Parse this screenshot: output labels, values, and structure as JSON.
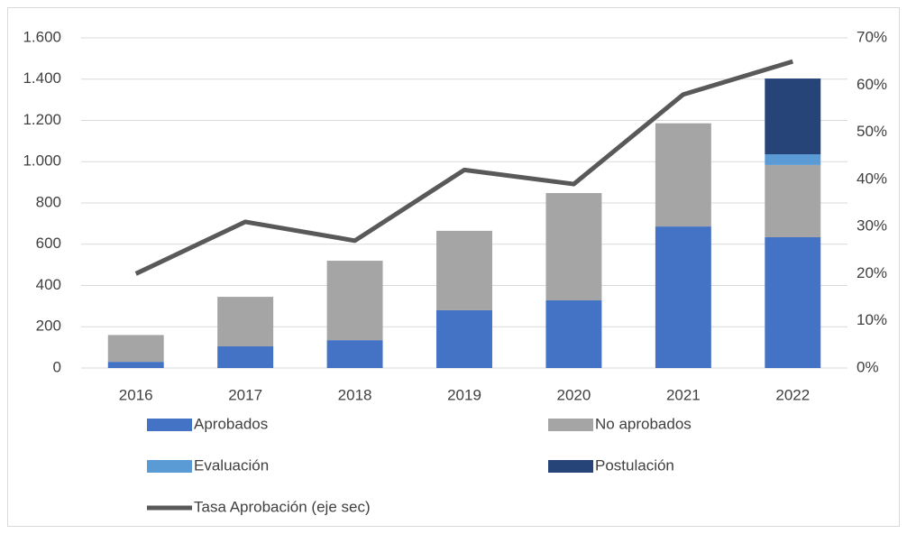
{
  "chart_data": {
    "type": "bar",
    "categories": [
      "2016",
      "2017",
      "2018",
      "2019",
      "2020",
      "2021",
      "2022"
    ],
    "series": [
      {
        "name": "Aprobados",
        "color": "#4472c4",
        "values": [
          30,
          105,
          135,
          280,
          328,
          686,
          634
        ]
      },
      {
        "name": "No aprobados",
        "color": "#a5a5a5",
        "values": [
          130,
          240,
          385,
          385,
          520,
          500,
          350
        ]
      },
      {
        "name": "Evaluación",
        "color": "#5b9bd5",
        "values": [
          null,
          null,
          null,
          null,
          null,
          null,
          52
        ]
      },
      {
        "name": "Postulación",
        "color": "#264478",
        "values": [
          null,
          null,
          null,
          null,
          null,
          null,
          367
        ]
      },
      {
        "name": "Tasa Aprobación (eje sec)",
        "color": "#595959",
        "type": "line",
        "axis": "y2",
        "values": [
          20,
          31,
          27,
          42,
          39,
          58,
          65
        ]
      }
    ],
    "stacked": true,
    "ylim": [
      0,
      1600
    ],
    "yticks": [
      0,
      200,
      400,
      600,
      800,
      {
        "value": 1000,
        "label": "1.000"
      },
      {
        "value": 1200,
        "label": "1.200"
      },
      {
        "value": 1400,
        "label": "1.400"
      },
      {
        "value": 1600,
        "label": "1.600"
      }
    ],
    "y2lim": [
      0,
      70
    ],
    "y2ticks": [
      {
        "value": 0,
        "label": "0%"
      },
      {
        "value": 10,
        "label": "10%"
      },
      {
        "value": 20,
        "label": "20%"
      },
      {
        "value": 30,
        "label": "30%"
      },
      {
        "value": 40,
        "label": "40%"
      },
      {
        "value": 50,
        "label": "50%"
      },
      {
        "value": 60,
        "label": "60%"
      },
      {
        "value": 70,
        "label": "70%"
      }
    ],
    "grid": true,
    "legend": "bottom"
  }
}
